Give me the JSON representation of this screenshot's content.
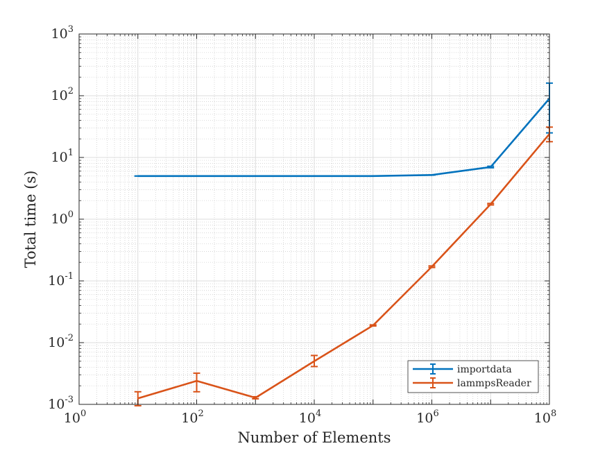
{
  "chart_data": {
    "type": "line",
    "xlabel": "Number of Elements",
    "ylabel": "Total time (s)",
    "xscale": "log",
    "yscale": "log",
    "xlim": [
      1,
      100000000
    ],
    "ylim": [
      0.001,
      1000
    ],
    "grid": "on (major and minor)",
    "legend_location": "bottom-right",
    "x_ticks": [
      {
        "base": "10",
        "exp": "0"
      },
      {
        "base": "10",
        "exp": "2"
      },
      {
        "base": "10",
        "exp": "4"
      },
      {
        "base": "10",
        "exp": "6"
      },
      {
        "base": "10",
        "exp": "8"
      }
    ],
    "y_ticks": [
      {
        "base": "10",
        "exp": "-3"
      },
      {
        "base": "10",
        "exp": "-2"
      },
      {
        "base": "10",
        "exp": "-1"
      },
      {
        "base": "10",
        "exp": "0"
      },
      {
        "base": "10",
        "exp": "1"
      },
      {
        "base": "10",
        "exp": "2"
      },
      {
        "base": "10",
        "exp": "3"
      }
    ],
    "series": [
      {
        "name": "importdata",
        "color": "#0072BD",
        "points": [
          {
            "x": 10,
            "y": 5.0,
            "lo": 5.0,
            "hi": 5.0
          },
          {
            "x": 100,
            "y": 5.0,
            "lo": 5.0,
            "hi": 5.0
          },
          {
            "x": 1000,
            "y": 5.0,
            "lo": 5.0,
            "hi": 5.0
          },
          {
            "x": 10000,
            "y": 5.0,
            "lo": 5.0,
            "hi": 5.0
          },
          {
            "x": 100000,
            "y": 5.0,
            "lo": 5.0,
            "hi": 5.0
          },
          {
            "x": 1000000,
            "y": 5.2,
            "lo": 5.2,
            "hi": 5.2
          },
          {
            "x": 10000000,
            "y": 7.0,
            "lo": 6.8,
            "hi": 7.2
          },
          {
            "x": 100000000,
            "y": 90,
            "lo": 25,
            "hi": 160
          }
        ]
      },
      {
        "name": "lammpsReader",
        "color": "#D95319",
        "points": [
          {
            "x": 10,
            "y": 0.00125,
            "lo": 0.00095,
            "hi": 0.0016
          },
          {
            "x": 100,
            "y": 0.0024,
            "lo": 0.0016,
            "hi": 0.0032
          },
          {
            "x": 1000,
            "y": 0.00128,
            "lo": 0.00123,
            "hi": 0.00133
          },
          {
            "x": 10000,
            "y": 0.005,
            "lo": 0.0041,
            "hi": 0.0062
          },
          {
            "x": 100000,
            "y": 0.019,
            "lo": 0.0186,
            "hi": 0.0194
          },
          {
            "x": 1000000,
            "y": 0.17,
            "lo": 0.165,
            "hi": 0.175
          },
          {
            "x": 10000000,
            "y": 1.75,
            "lo": 1.7,
            "hi": 1.8
          },
          {
            "x": 100000000,
            "y": 24,
            "lo": 18,
            "hi": 31
          }
        ]
      }
    ]
  }
}
